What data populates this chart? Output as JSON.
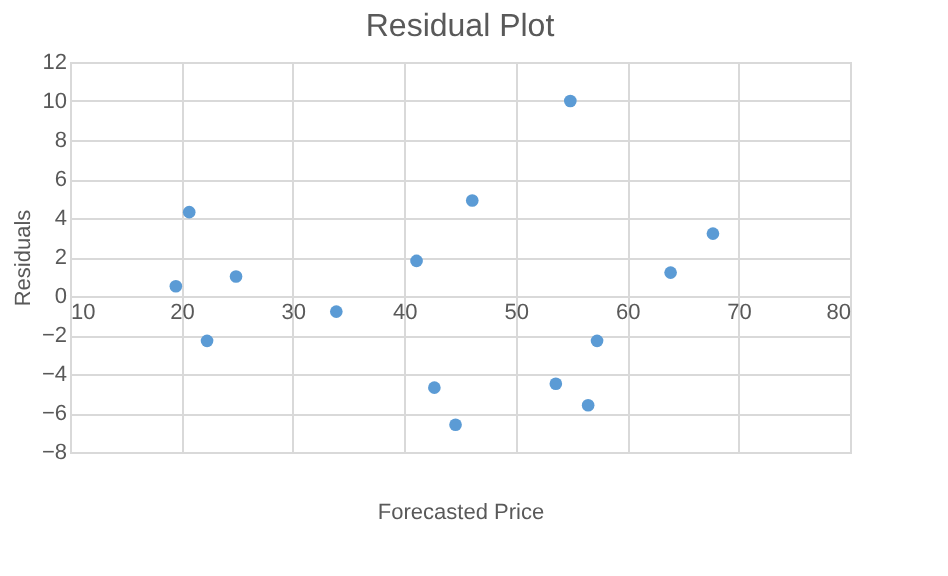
{
  "chart_data": {
    "type": "scatter",
    "title": "Residual Plot",
    "xlabel": "Forecasted Price",
    "ylabel": "Residuals",
    "x": [
      19.5,
      20.7,
      22.3,
      24.9,
      33.9,
      41.1,
      42.7,
      44.6,
      46.1,
      54.9,
      53.6,
      56.5,
      57.3,
      63.9,
      67.7
    ],
    "series": [
      {
        "color": "#5b9bd5",
        "values": [
          0.5,
          4.3,
          -2.3,
          1.0,
          -0.8,
          1.8,
          -4.7,
          -6.6,
          4.9,
          10.0,
          -4.5,
          -5.6,
          -2.3,
          1.2,
          3.2
        ]
      }
    ],
    "xlim": [
      10,
      80
    ],
    "xticks": [
      10,
      20,
      30,
      40,
      50,
      60,
      70,
      80
    ],
    "ylim": [
      -8,
      12
    ],
    "yticks": [
      -8,
      -6,
      -4,
      -2,
      0,
      2,
      4,
      6,
      8,
      10,
      12
    ],
    "grid": true,
    "marker": "circle",
    "legend": false
  }
}
